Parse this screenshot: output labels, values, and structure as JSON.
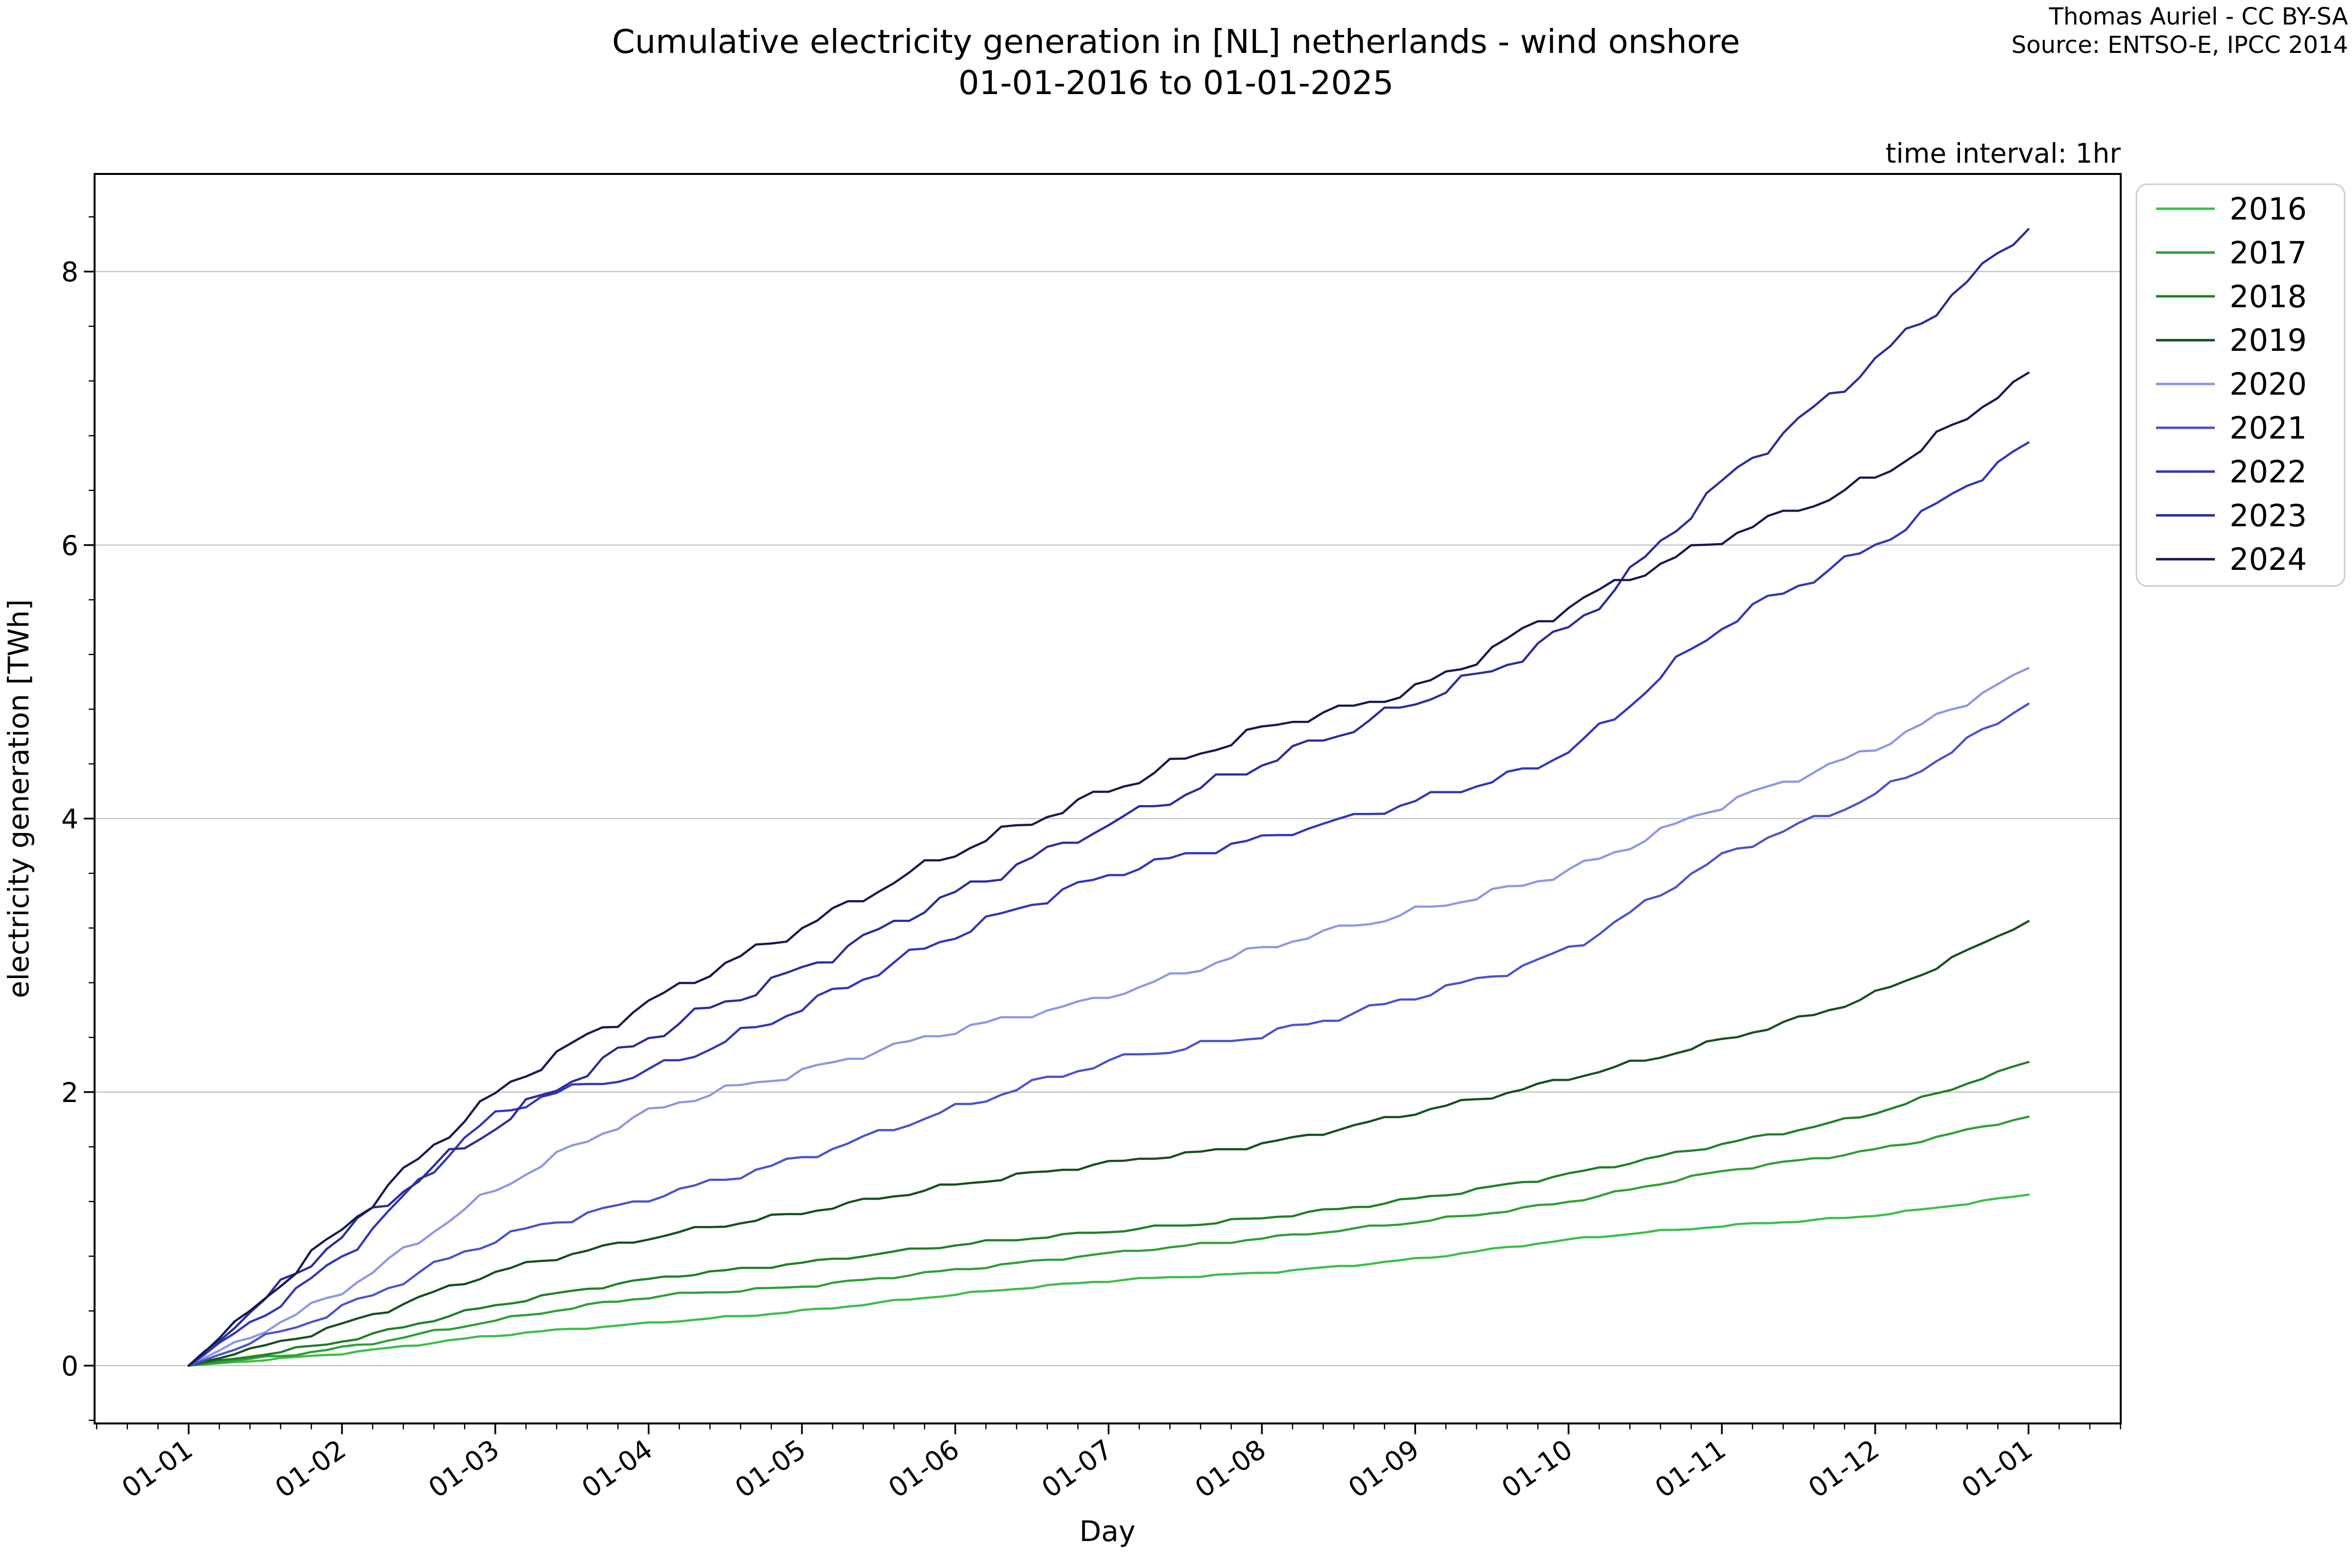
{
  "header": {
    "title_line1": "Cumulative electricity generation in [NL] netherlands - wind onshore",
    "title_line2": "01-01-2016 to 01-01-2025",
    "attribution_line1": "Thomas Auriel - CC BY-SA",
    "attribution_line2": "Source: ENTSO-E, IPCC 2014",
    "time_interval_note": "time interval: 1hr"
  },
  "chart_data": {
    "type": "line",
    "title": "Cumulative electricity generation in [NL] netherlands - wind onshore 01-01-2016 to 01-01-2025",
    "xlabel": "Day",
    "ylabel": "electricity generation [TWh]",
    "x_tick_labels": [
      "01-01",
      "01-02",
      "01-03",
      "01-04",
      "01-05",
      "01-06",
      "01-07",
      "01-08",
      "01-09",
      "01-10",
      "01-11",
      "01-12",
      "01-01"
    ],
    "y_tick_labels": [
      "0",
      "2",
      "4",
      "6",
      "8"
    ],
    "y_tick_values": [
      0,
      2,
      4,
      6,
      8
    ],
    "ylim": [
      -0.42,
      8.72
    ],
    "xlim_months": [
      -0.61,
      12.6
    ],
    "x_months": [
      0,
      1,
      2,
      3,
      4,
      5,
      6,
      7,
      8,
      9,
      10,
      11,
      12
    ],
    "grid": "horizontal-only",
    "legend_position": "outside-right",
    "series": [
      {
        "name": "2016",
        "color": "#3cbf47",
        "monthly_cumulative_TWh": [
          0,
          0.09,
          0.22,
          0.31,
          0.4,
          0.52,
          0.62,
          0.68,
          0.78,
          0.92,
          1.02,
          1.1,
          1.25
        ]
      },
      {
        "name": "2017",
        "color": "#2da035",
        "monthly_cumulative_TWh": [
          0,
          0.13,
          0.33,
          0.5,
          0.58,
          0.7,
          0.82,
          0.93,
          1.05,
          1.2,
          1.42,
          1.58,
          1.82
        ]
      },
      {
        "name": "2018",
        "color": "#1f8028",
        "monthly_cumulative_TWh": [
          0,
          0.18,
          0.44,
          0.63,
          0.75,
          0.88,
          0.98,
          1.08,
          1.22,
          1.4,
          1.62,
          1.85,
          2.22
        ]
      },
      {
        "name": "2019",
        "color": "#174f1e",
        "monthly_cumulative_TWh": [
          0,
          0.3,
          0.68,
          0.93,
          1.12,
          1.32,
          1.48,
          1.62,
          1.85,
          2.1,
          2.38,
          2.72,
          3.25
        ]
      },
      {
        "name": "2020",
        "color": "#8f96e6",
        "monthly_cumulative_TWh": [
          0,
          0.55,
          1.28,
          1.85,
          2.15,
          2.45,
          2.7,
          3.05,
          3.32,
          3.62,
          4.1,
          4.52,
          5.1
        ]
      },
      {
        "name": "2021",
        "color": "#4b51cf",
        "monthly_cumulative_TWh": [
          0,
          0.42,
          0.92,
          1.22,
          1.52,
          1.88,
          2.22,
          2.42,
          2.7,
          3.05,
          3.72,
          4.18,
          4.84
        ]
      },
      {
        "name": "2022",
        "color": "#3136ba",
        "monthly_cumulative_TWh": [
          0,
          0.8,
          1.82,
          2.15,
          2.62,
          3.15,
          3.58,
          3.85,
          4.12,
          4.5,
          5.4,
          6.0,
          6.75
        ]
      },
      {
        "name": "2023",
        "color": "#2a2d9c",
        "monthly_cumulative_TWh": [
          0,
          0.95,
          1.75,
          2.4,
          2.9,
          3.45,
          3.95,
          4.4,
          4.85,
          5.4,
          6.45,
          7.35,
          8.31
        ]
      },
      {
        "name": "2024",
        "color": "#161a4f",
        "monthly_cumulative_TWh": [
          0,
          1.0,
          1.98,
          2.65,
          3.2,
          3.75,
          4.2,
          4.65,
          4.95,
          5.55,
          6.05,
          6.5,
          7.26
        ]
      }
    ]
  }
}
